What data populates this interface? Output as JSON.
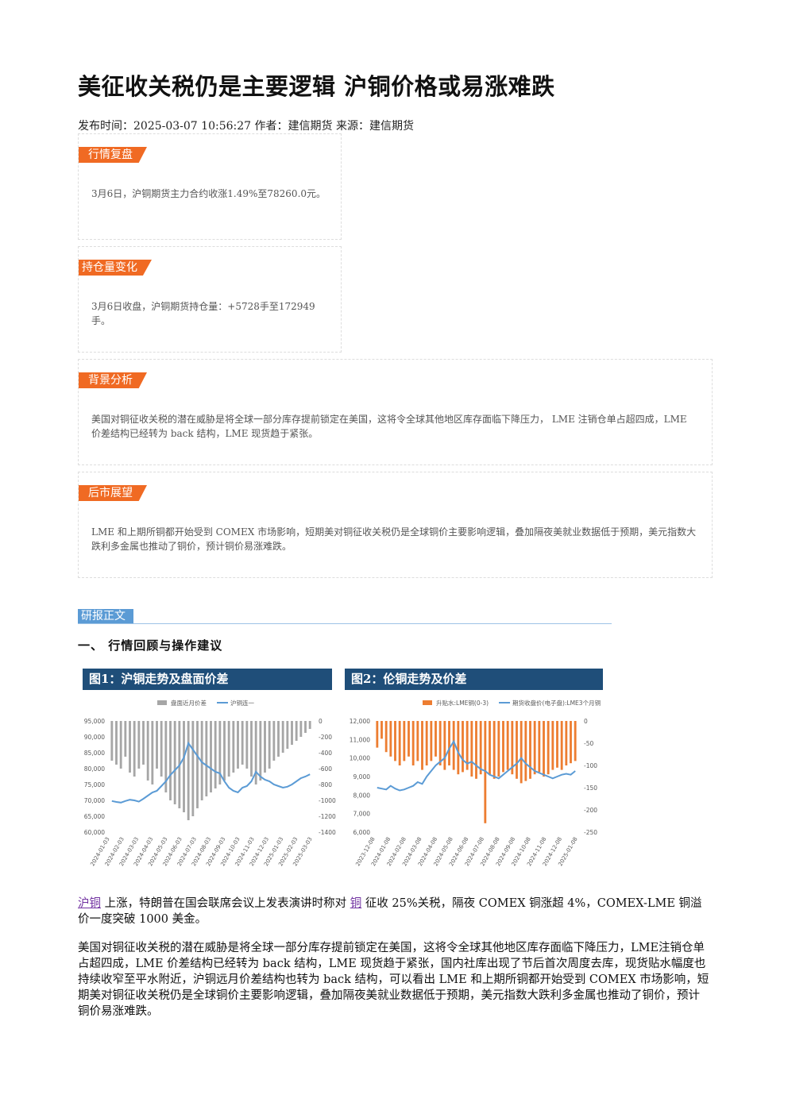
{
  "header": {
    "title": "美征收关税仍是主要逻辑 沪铜价格或易涨难跌",
    "meta": "发布时间：2025-03-07 10:56:27 作者：建信期货 来源：建信期货"
  },
  "boxes": [
    {
      "tag": "行情复盘",
      "text": "3月6日，沪铜期货主力合约收涨1.49%至78260.0元。"
    },
    {
      "tag": "持仓量变化",
      "text": "3月6日收盘，沪铜期货持仓量：+5728手至172949手。"
    },
    {
      "tag": "背景分析",
      "text": "美国对铜征收关税的潜在威胁是将全球一部分库存提前锁定在美国，这将令全球其他地区库存面临下降压力， LME 注销仓单占超四成，LME 价差结构已经转为 back 结构，LME 现货趋于紧张。"
    },
    {
      "tag": "后市展望",
      "text": "LME 和上期所铜都开始受到 COMEX 市场影响，短期美对铜征收关税仍是全球铜价主要影响逻辑，叠加隔夜美就业数据低于预期，美元指数大跌利多金属也推动了铜价，预计铜价易涨难跌。"
    }
  ],
  "section": {
    "tag": "研报正文",
    "heading": "一、 行情回顾与操作建议"
  },
  "figures": [
    {
      "title": "图1：沪铜走势及盘面价差",
      "chart": {
        "type": "combo",
        "x_labels": [
          "2024-01-03",
          "2024-02-03",
          "2024-03-03",
          "2024-04-03",
          "2024-05-03",
          "2024-06-03",
          "2024-07-03",
          "2024-08-03",
          "2024-09-03",
          "2024-10-03",
          "2024-11-03",
          "2024-12-03",
          "2025-01-03",
          "2025-02-03",
          "2025-03-03"
        ],
        "ylim": [
          60000,
          95000
        ],
        "yticks": [
          {
            "value": 95000,
            "label": "95,000"
          },
          {
            "value": 90000,
            "label": "90,000"
          },
          {
            "value": 85000,
            "label": "85,000"
          },
          {
            "value": 80000,
            "label": "80,000"
          },
          {
            "value": 75000,
            "label": "75,000"
          },
          {
            "value": 70000,
            "label": "70,000"
          },
          {
            "value": 65000,
            "label": "65,000"
          },
          {
            "value": 60000,
            "label": "60,000"
          }
        ],
        "y2lim": [
          -1400,
          0
        ],
        "y2ticks": [
          0,
          -200,
          -400,
          -600,
          -800,
          -1000,
          -1200,
          -1400
        ],
        "series": [
          {
            "name": "盘面近月价差",
            "type": "bar",
            "axis": "y2",
            "color": "#a6a6a6",
            "values": [
              -500,
              -550,
              -600,
              -450,
              -650,
              -700,
              -600,
              -550,
              -750,
              -800,
              -600,
              -700,
              -900,
              -1000,
              -1050,
              -1100,
              -1150,
              -1250,
              -1200,
              -1100,
              -1000,
              -950,
              -900,
              -850,
              -800,
              -750,
              -700,
              -650,
              -600,
              -550,
              -600,
              -700,
              -800,
              -750,
              -650,
              -600,
              -500,
              -450,
              -400,
              -350,
              -300,
              -250,
              -200,
              -150,
              -100
            ]
          },
          {
            "name": "沪铜连一",
            "type": "line",
            "color": "#5b9bd5",
            "values": [
              69800,
              69500,
              69300,
              69800,
              70200,
              70000,
              69600,
              70500,
              71500,
              72500,
              73000,
              74500,
              76000,
              78000,
              79500,
              81000,
              83500,
              88000,
              86000,
              84000,
              82000,
              81000,
              80000,
              79000,
              78500,
              76000,
              74000,
              73000,
              72500,
              74000,
              74500,
              76000,
              79000,
              77500,
              76500,
              76000,
              75000,
              74500,
              74000,
              74300,
              75000,
              76000,
              77000,
              77500,
              78200
            ]
          }
        ]
      }
    },
    {
      "title": "图2：伦铜走势及价差",
      "chart": {
        "type": "combo",
        "x_labels": [
          "2023-12-08",
          "2024-01-08",
          "2024-02-08",
          "2024-03-08",
          "2024-04-08",
          "2024-05-08",
          "2024-06-08",
          "2024-07-08",
          "2024-08-08",
          "2024-09-08",
          "2024-10-08",
          "2024-11-08",
          "2024-12-08",
          "2025-01-08"
        ],
        "ylim": [
          6000,
          12000
        ],
        "yticks": [
          {
            "value": 12000,
            "label": "12,000"
          },
          {
            "value": 11000,
            "label": "11,000"
          },
          {
            "value": 10000,
            "label": "10,000"
          },
          {
            "value": 9000,
            "label": "9,000"
          },
          {
            "value": 8000,
            "label": "8,000"
          },
          {
            "value": 7000,
            "label": "7,000"
          },
          {
            "value": 6000,
            "label": "6,000"
          }
        ],
        "y2lim": [
          -250,
          0
        ],
        "y2ticks": [
          0,
          -50,
          -100,
          -150,
          -200,
          -250
        ],
        "series": [
          {
            "name": "升贴水:LME铜(0-3)",
            "type": "bar",
            "axis": "y2",
            "color": "#ed7d31",
            "values": [
              -60,
              -40,
              -70,
              -80,
              -90,
              -100,
              -90,
              -80,
              -100,
              -90,
              -110,
              -100,
              -90,
              -80,
              -100,
              -110,
              -100,
              -110,
              -120,
              -115,
              -110,
              -125,
              -130,
              -120,
              -230,
              -120,
              -130,
              -125,
              -115,
              -110,
              -120,
              -130,
              -140,
              -135,
              -130,
              -120,
              -115,
              -125,
              -120,
              -110,
              -105,
              -110,
              -100,
              -95,
              -90
            ]
          },
          {
            "name": "期货收盘价(电子盘):LME3个月铜",
            "type": "line",
            "color": "#5b9bd5",
            "values": [
              8400,
              8350,
              8300,
              8500,
              8350,
              8250,
              8300,
              8400,
              8500,
              8700,
              8600,
              9000,
              9300,
              9600,
              9800,
              10000,
              10500,
              10900,
              10300,
              9900,
              9700,
              9800,
              9600,
              9400,
              9300,
              9100,
              9000,
              8900,
              9100,
              9300,
              9500,
              9700,
              10000,
              9700,
              9500,
              9300,
              9200,
              9100,
              9000,
              8900,
              9000,
              9100,
              9150,
              9100,
              9300
            ]
          }
        ]
      }
    }
  ],
  "body": {
    "p1": {
      "link1": "沪铜",
      "text1": "上涨，特朗普在国会联席会议上发表演讲时称对",
      "link2": "铜",
      "text2": "征收 25%关税，隔夜 COMEX 铜涨超 4%，COMEX-LME 铜溢价一度突破 1000 美金。"
    },
    "p2": "美国对铜征收关税的潜在威胁是将全球一部分库存提前锁定在美国，这将令全球其他地区库存面临下降压力，LME注销仓单占超四成，LME 价差结构已经转为 back 结构，LME 现货趋于紧张，国内社库出现了节后首次周度去库，现货贴水幅度也持续收窄至平水附近，沪铜远月价差结构也转为 back 结构，可以看出 LME 和上期所铜都开始受到 COMEX 市场影响，短期美对铜征收关税仍是全球铜价主要影响逻辑，叠加隔夜美就业数据低于预期，美元指数大跌利多金属也推动了铜价，预计铜价易涨难跌。"
  }
}
